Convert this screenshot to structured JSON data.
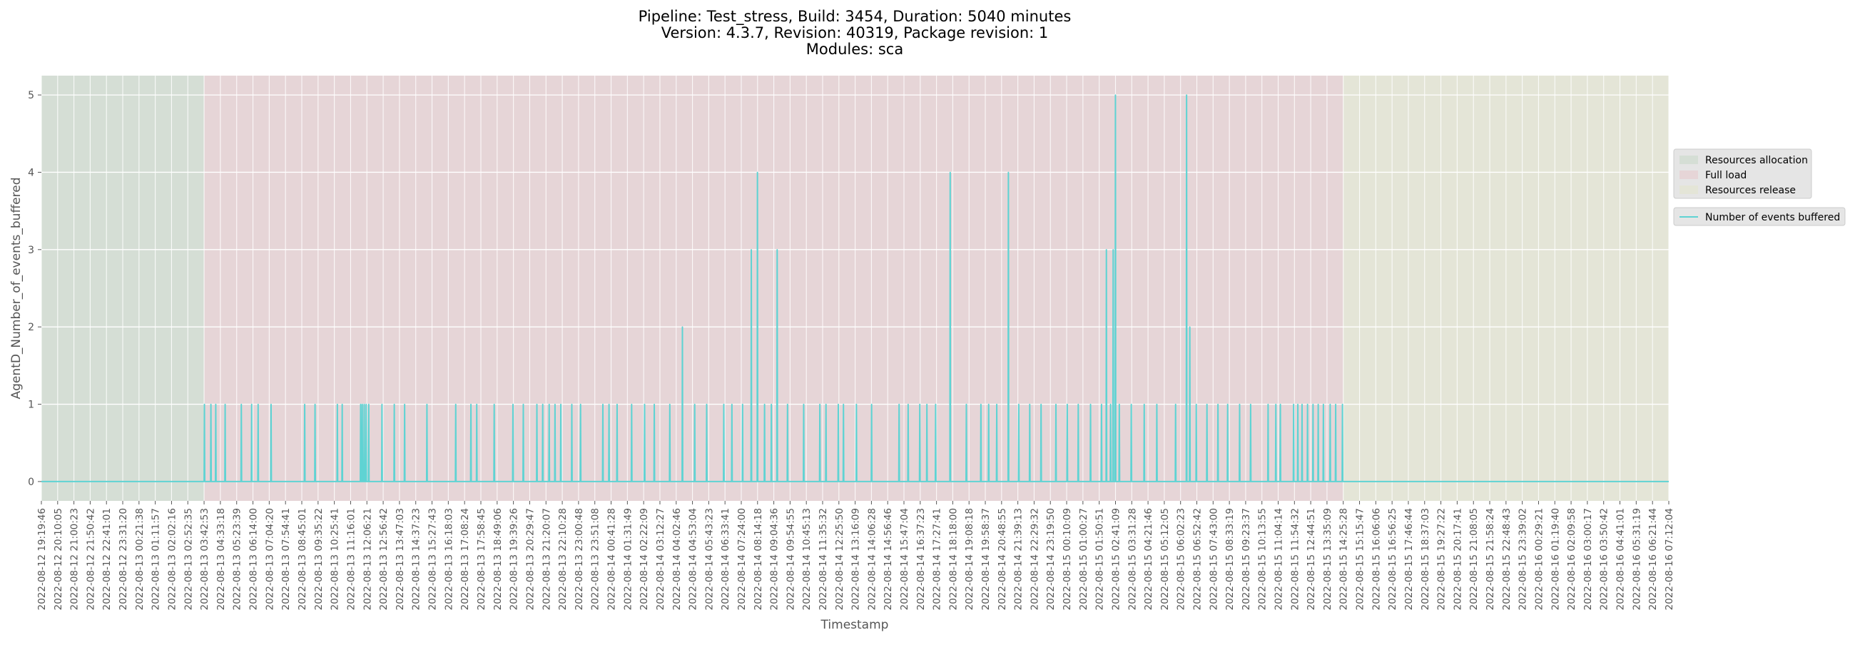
{
  "chart_data": {
    "type": "line",
    "title_lines": [
      "Pipeline: Test_stress, Build: 3454, Duration: 5040 minutes",
      "Version: 4.3.7, Revision: 40319, Package revision: 1",
      "Modules: sca"
    ],
    "xlabel": "Timestamp",
    "ylabel": "AgentD_Number_of_events_buffered",
    "ylim": [
      -0.25,
      5.25
    ],
    "yticks": [
      0,
      1,
      2,
      3,
      4,
      5
    ],
    "x_tick_labels": [
      "2022-08-12 19:19:46",
      "2022-08-12 20:10:05",
      "2022-08-12 21:00:23",
      "2022-08-12 21:50:42",
      "2022-08-12 22:41:01",
      "2022-08-12 23:31:20",
      "2022-08-13 00:21:38",
      "2022-08-13 01:11:57",
      "2022-08-13 02:02:16",
      "2022-08-13 02:52:35",
      "2022-08-13 03:42:53",
      "2022-08-13 04:33:18",
      "2022-08-13 05:23:39",
      "2022-08-13 06:14:00",
      "2022-08-13 07:04:20",
      "2022-08-13 07:54:41",
      "2022-08-13 08:45:01",
      "2022-08-13 09:35:22",
      "2022-08-13 10:25:41",
      "2022-08-13 11:16:01",
      "2022-08-13 12:06:21",
      "2022-08-13 12:56:42",
      "2022-08-13 13:47:03",
      "2022-08-13 14:37:23",
      "2022-08-13 15:27:43",
      "2022-08-13 16:18:03",
      "2022-08-13 17:08:24",
      "2022-08-13 17:58:45",
      "2022-08-13 18:49:06",
      "2022-08-13 19:39:26",
      "2022-08-13 20:29:47",
      "2022-08-13 21:20:07",
      "2022-08-13 22:10:28",
      "2022-08-13 23:00:48",
      "2022-08-13 23:51:08",
      "2022-08-14 00:41:28",
      "2022-08-14 01:31:49",
      "2022-08-14 02:22:09",
      "2022-08-14 03:12:27",
      "2022-08-14 04:02:46",
      "2022-08-14 04:53:04",
      "2022-08-14 05:43:23",
      "2022-08-14 06:33:41",
      "2022-08-14 07:24:00",
      "2022-08-14 08:14:18",
      "2022-08-14 09:04:36",
      "2022-08-14 09:54:55",
      "2022-08-14 10:45:13",
      "2022-08-14 11:35:32",
      "2022-08-14 12:25:50",
      "2022-08-14 13:16:09",
      "2022-08-14 14:06:28",
      "2022-08-14 14:56:46",
      "2022-08-14 15:47:04",
      "2022-08-14 16:37:23",
      "2022-08-14 17:27:41",
      "2022-08-14 18:18:00",
      "2022-08-14 19:08:18",
      "2022-08-14 19:58:37",
      "2022-08-14 20:48:55",
      "2022-08-14 21:39:13",
      "2022-08-14 22:29:32",
      "2022-08-14 23:19:50",
      "2022-08-15 00:10:09",
      "2022-08-15 01:00:27",
      "2022-08-15 01:50:51",
      "2022-08-15 02:41:09",
      "2022-08-15 03:31:28",
      "2022-08-15 04:21:46",
      "2022-08-15 05:12:05",
      "2022-08-15 06:02:23",
      "2022-08-15 06:52:42",
      "2022-08-15 07:43:00",
      "2022-08-15 08:33:19",
      "2022-08-15 09:23:37",
      "2022-08-15 10:13:55",
      "2022-08-15 11:04:14",
      "2022-08-15 11:54:32",
      "2022-08-15 12:44:51",
      "2022-08-15 13:35:09",
      "2022-08-15 14:25:28",
      "2022-08-15 15:15:47",
      "2022-08-15 16:06:06",
      "2022-08-15 16:56:25",
      "2022-08-15 17:46:44",
      "2022-08-15 18:37:03",
      "2022-08-15 19:27:22",
      "2022-08-15 20:17:41",
      "2022-08-15 21:08:05",
      "2022-08-15 21:58:24",
      "2022-08-15 22:48:43",
      "2022-08-15 23:39:02",
      "2022-08-16 00:29:21",
      "2022-08-16 01:19:40",
      "2022-08-16 02:09:58",
      "2022-08-16 03:00:17",
      "2022-08-16 03:50:42",
      "2022-08-16 04:41:01",
      "2022-08-16 05:31:19",
      "2022-08-16 06:21:44",
      "2022-08-16 07:12:04"
    ],
    "phases": [
      {
        "name": "Resources allocation",
        "start": "2022-08-12 19:19:46",
        "end": "2022-08-13 03:42:53",
        "color": "#c9d9c9"
      },
      {
        "name": "Full load",
        "start": "2022-08-13 03:42:53",
        "end": "2022-08-15 14:25:28",
        "color": "#e8c8cc"
      },
      {
        "name": "Resources release",
        "start": "2022-08-15 14:25:28",
        "end": "2022-08-16 07:12:04",
        "color": "#e3e6cc"
      }
    ],
    "series": [
      {
        "name": "Number of events buffered",
        "color": "#5fd3d3",
        "points": [
          [
            "2022-08-13 03:44:00",
            1
          ],
          [
            "2022-08-13 04:04:00",
            1
          ],
          [
            "2022-08-13 04:19:00",
            1
          ],
          [
            "2022-08-13 04:48:00",
            1
          ],
          [
            "2022-08-13 05:38:00",
            1
          ],
          [
            "2022-08-13 06:10:00",
            1
          ],
          [
            "2022-08-13 06:30:00",
            1
          ],
          [
            "2022-08-13 07:10:00",
            1
          ],
          [
            "2022-08-13 08:54:00",
            1
          ],
          [
            "2022-08-13 09:26:00",
            1
          ],
          [
            "2022-08-13 10:35:00",
            1
          ],
          [
            "2022-08-13 10:50:00",
            1
          ],
          [
            "2022-08-13 11:47:00",
            1
          ],
          [
            "2022-08-13 11:52:00",
            1
          ],
          [
            "2022-08-13 11:58:00",
            1
          ],
          [
            "2022-08-13 12:04:00",
            1
          ],
          [
            "2022-08-13 12:12:00",
            1
          ],
          [
            "2022-08-13 12:53:00",
            1
          ],
          [
            "2022-08-13 13:31:00",
            1
          ],
          [
            "2022-08-13 14:03:00",
            1
          ],
          [
            "2022-08-13 15:12:00",
            1
          ],
          [
            "2022-08-13 16:41:00",
            1
          ],
          [
            "2022-08-13 17:28:00",
            1
          ],
          [
            "2022-08-13 17:46:00",
            1
          ],
          [
            "2022-08-13 18:40:00",
            1
          ],
          [
            "2022-08-13 19:38:00",
            1
          ],
          [
            "2022-08-13 20:10:00",
            1
          ],
          [
            "2022-08-13 20:52:00",
            1
          ],
          [
            "2022-08-13 21:10:00",
            1
          ],
          [
            "2022-08-13 21:30:00",
            1
          ],
          [
            "2022-08-13 21:48:00",
            1
          ],
          [
            "2022-08-13 22:06:00",
            1
          ],
          [
            "2022-08-13 22:40:00",
            1
          ],
          [
            "2022-08-13 23:07:00",
            1
          ],
          [
            "2022-08-14 00:16:00",
            1
          ],
          [
            "2022-08-14 00:35:00",
            1
          ],
          [
            "2022-08-14 01:00:00",
            1
          ],
          [
            "2022-08-14 01:45:00",
            1
          ],
          [
            "2022-08-14 02:25:00",
            1
          ],
          [
            "2022-08-14 02:55:00",
            1
          ],
          [
            "2022-08-14 03:43:00",
            1
          ],
          [
            "2022-08-14 04:22:00",
            2
          ],
          [
            "2022-08-14 05:00:00",
            1
          ],
          [
            "2022-08-14 05:37:00",
            1
          ],
          [
            "2022-08-14 06:30:00",
            1
          ],
          [
            "2022-08-14 06:55:00",
            1
          ],
          [
            "2022-08-14 07:28:00",
            1
          ],
          [
            "2022-08-14 07:55:00",
            3
          ],
          [
            "2022-08-14 08:14:00",
            4
          ],
          [
            "2022-08-14 08:36:00",
            1
          ],
          [
            "2022-08-14 08:57:00",
            1
          ],
          [
            "2022-08-14 09:15:00",
            3
          ],
          [
            "2022-08-14 09:47:00",
            1
          ],
          [
            "2022-08-14 10:37:00",
            1
          ],
          [
            "2022-08-14 11:27:00",
            1
          ],
          [
            "2022-08-14 11:46:00",
            1
          ],
          [
            "2022-08-14 12:24:00",
            1
          ],
          [
            "2022-08-14 12:40:00",
            1
          ],
          [
            "2022-08-14 13:20:00",
            1
          ],
          [
            "2022-08-14 14:07:00",
            1
          ],
          [
            "2022-08-14 15:32:00",
            1
          ],
          [
            "2022-08-14 16:00:00",
            1
          ],
          [
            "2022-08-14 16:36:00",
            1
          ],
          [
            "2022-08-14 16:58:00",
            1
          ],
          [
            "2022-08-14 17:25:00",
            1
          ],
          [
            "2022-08-14 18:10:00",
            4
          ],
          [
            "2022-08-14 19:00:00",
            1
          ],
          [
            "2022-08-14 19:45:00",
            1
          ],
          [
            "2022-08-14 20:09:00",
            1
          ],
          [
            "2022-08-14 20:34:00",
            1
          ],
          [
            "2022-08-14 21:10:00",
            4
          ],
          [
            "2022-08-14 21:42:00",
            1
          ],
          [
            "2022-08-14 22:16:00",
            1
          ],
          [
            "2022-08-14 22:51:00",
            1
          ],
          [
            "2022-08-14 23:37:00",
            1
          ],
          [
            "2022-08-15 00:12:00",
            1
          ],
          [
            "2022-08-15 00:46:00",
            1
          ],
          [
            "2022-08-15 01:24:00",
            1
          ],
          [
            "2022-08-15 01:58:00",
            1
          ],
          [
            "2022-08-15 02:13:00",
            3
          ],
          [
            "2022-08-15 02:26:00",
            1
          ],
          [
            "2022-08-15 02:34:00",
            3
          ],
          [
            "2022-08-15 02:41:00",
            5
          ],
          [
            "2022-08-15 02:53:00",
            1
          ],
          [
            "2022-08-15 03:30:00",
            1
          ],
          [
            "2022-08-15 04:10:00",
            1
          ],
          [
            "2022-08-15 04:49:00",
            1
          ],
          [
            "2022-08-15 05:47:00",
            1
          ],
          [
            "2022-08-15 06:21:00",
            5
          ],
          [
            "2022-08-15 06:31:00",
            2
          ],
          [
            "2022-08-15 06:51:00",
            1
          ],
          [
            "2022-08-15 07:24:00",
            1
          ],
          [
            "2022-08-15 07:58:00",
            1
          ],
          [
            "2022-08-15 08:28:00",
            1
          ],
          [
            "2022-08-15 09:05:00",
            1
          ],
          [
            "2022-08-15 09:39:00",
            1
          ],
          [
            "2022-08-15 10:33:00",
            1
          ],
          [
            "2022-08-15 10:57:00",
            1
          ],
          [
            "2022-08-15 11:11:00",
            1
          ],
          [
            "2022-08-15 11:52:00",
            1
          ],
          [
            "2022-08-15 12:05:00",
            1
          ],
          [
            "2022-08-15 12:18:00",
            1
          ],
          [
            "2022-08-15 12:35:00",
            1
          ],
          [
            "2022-08-15 12:52:00",
            1
          ],
          [
            "2022-08-15 13:08:00",
            1
          ],
          [
            "2022-08-15 13:24:00",
            1
          ],
          [
            "2022-08-15 13:45:00",
            1
          ],
          [
            "2022-08-15 14:02:00",
            1
          ],
          [
            "2022-08-15 14:23:00",
            1
          ]
        ]
      }
    ],
    "legend": {
      "placement": "right",
      "phase_entries": [
        "Resources allocation",
        "Full load",
        "Resources release"
      ],
      "series_entries": [
        "Number of events buffered"
      ]
    },
    "grid": true
  },
  "colors": {
    "figure_background": "#ffffff",
    "axes_background": "#e5e5e5",
    "grid": "#ffffff",
    "text": "#000000",
    "tick_text": "#555555",
    "legend_background": "#e5e5e5"
  }
}
